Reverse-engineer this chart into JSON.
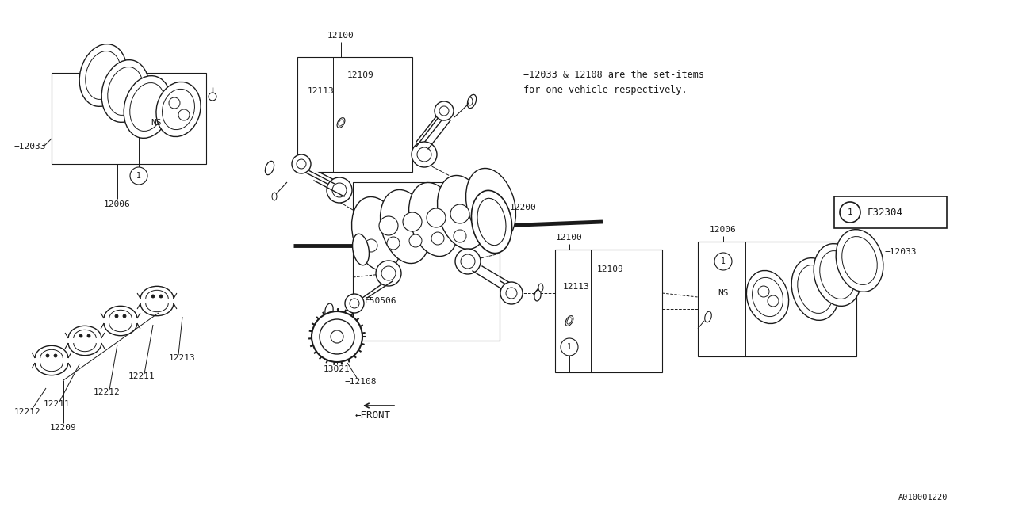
{
  "bg_color": "#ffffff",
  "lc": "#1a1a1a",
  "note1": "−12033 & 12108 are the set-items",
  "note2": "for one vehicle respectively.",
  "parts": {
    "12100_top": "12100",
    "12109_top": "12109",
    "12113_top": "12113",
    "12200": "12200",
    "12006_left": "12006",
    "12033_left": "−12033",
    "E50506": "E50506",
    "12108": "−12108",
    "13021": "13021",
    "12213": "12213",
    "12212": "12212",
    "12211": "12211",
    "12209": "12209",
    "12006_right": "12006",
    "12033_right": "−12033",
    "12113_right": "12113",
    "12109_right": "12109",
    "12100_right": "12100",
    "F32304": "F32304",
    "diagram_code": "A010001220"
  }
}
